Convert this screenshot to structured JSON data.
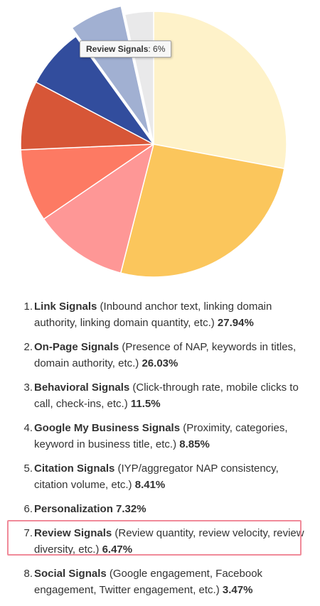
{
  "chart_data": {
    "type": "pie",
    "start_angle_deg": 0,
    "direction": "clockwise",
    "slices": [
      {
        "label": "Link Signals",
        "value": 27.94,
        "color": "#fef2c9"
      },
      {
        "label": "On-Page Signals",
        "value": 26.03,
        "color": "#fbc65c"
      },
      {
        "label": "Behavioral Signals",
        "value": 11.5,
        "color": "#fe9796"
      },
      {
        "label": "Google My Business Signals",
        "value": 8.85,
        "color": "#fd7a63"
      },
      {
        "label": "Citation Signals",
        "value": 8.41,
        "color": "#d75637"
      },
      {
        "label": "Personalization",
        "value": 7.32,
        "color": "#324d9d"
      },
      {
        "label": "Review Signals",
        "value": 6.47,
        "color": "#a1b0d2"
      },
      {
        "label": "Social Signals",
        "value": 3.47,
        "color": "#e9e9ea"
      }
    ],
    "exploded_slice": "Review Signals",
    "tooltip": {
      "name": "Review Signals",
      "value": "6%"
    }
  },
  "factors": [
    {
      "num": "1.",
      "name": "Link Signals",
      "desc": "(Inbound anchor text, linking domain authority, linking domain quantity, etc.)",
      "pct": "27.94%"
    },
    {
      "num": "2.",
      "name": "On-Page Signals",
      "desc": "(Presence of NAP, keywords in titles, domain authority, etc.)",
      "pct": "26.03%"
    },
    {
      "num": "3.",
      "name": "Behavioral Signals",
      "desc": "(Click-through rate, mobile clicks to call, check-ins, etc.)",
      "pct": "11.5%"
    },
    {
      "num": "4.",
      "name": "Google My Business Signals",
      "desc": "(Proximity, categories, keyword in business title, etc.)",
      "pct": "8.85%"
    },
    {
      "num": "5.",
      "name": "Citation Signals",
      "desc": "(IYP/aggregator NAP consistency, citation volume, etc.)",
      "pct": "8.41%"
    },
    {
      "num": "6.",
      "name": "Personalization",
      "desc": "",
      "pct": "7.32%"
    },
    {
      "num": "7.",
      "name": "Review Signals",
      "desc": "(Review quantity, review velocity, review diversity, etc.)",
      "pct": "6.47%"
    },
    {
      "num": "8.",
      "name": "Social Signals",
      "desc": "(Google engagement, Facebook engagement, Twitter engagement, etc.)",
      "pct": "3.47%"
    }
  ],
  "highlighted_item": "Review Signals"
}
